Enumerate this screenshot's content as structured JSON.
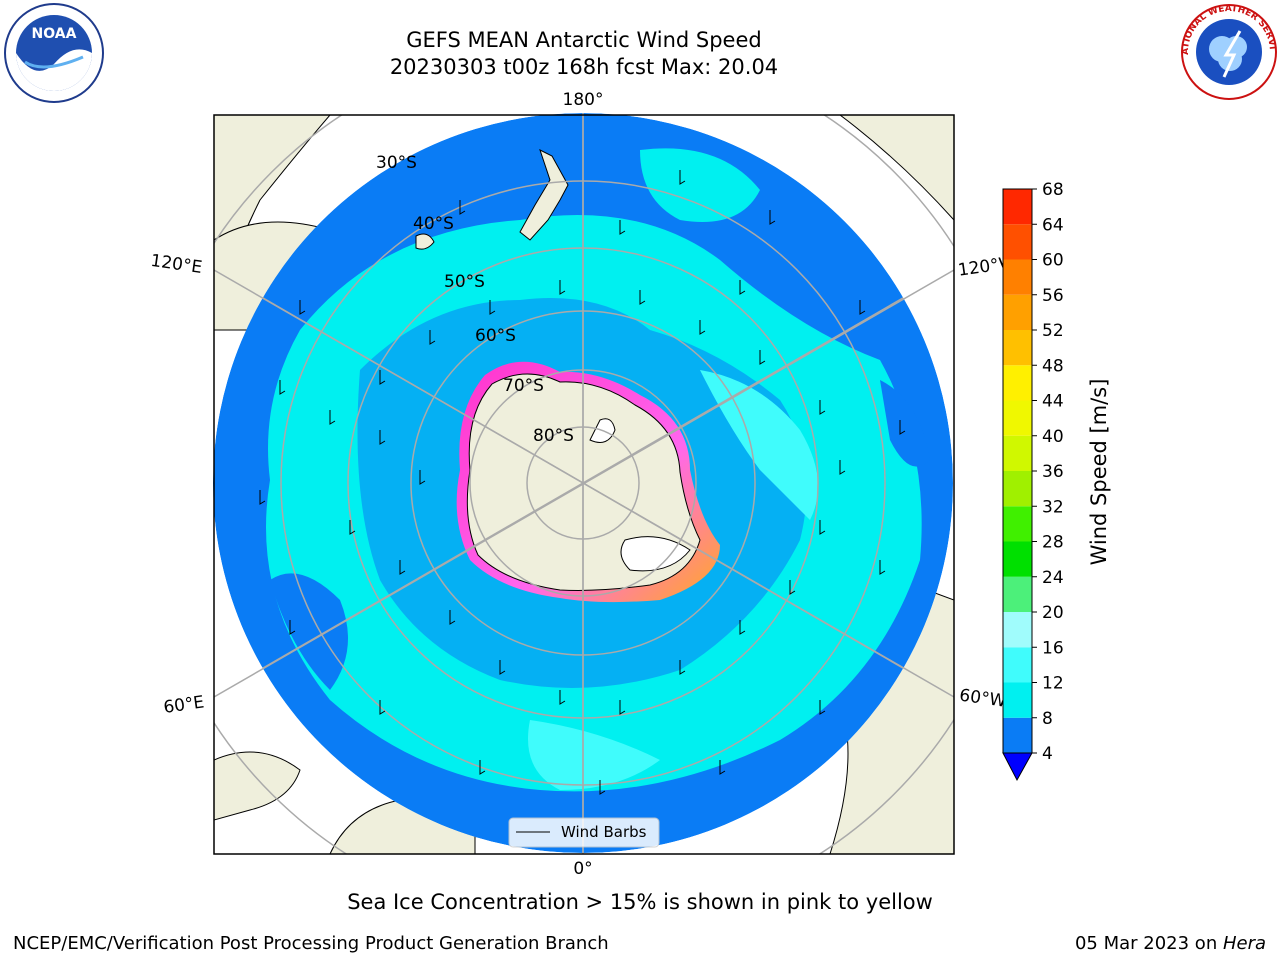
{
  "title": {
    "line1": "GEFS MEAN Antarctic Wind Speed",
    "line2": "20230303 t00z 168h fcst   Max: 20.04"
  },
  "map": {
    "projection": "South Polar Stereographic",
    "longitude_labels": {
      "top": "180°",
      "bottom": "0°",
      "upper_left": "120°E",
      "upper_right": "120°W",
      "lower_left": "60°E",
      "lower_right": "60°W"
    },
    "latitude_labels": [
      "30°S",
      "40°S",
      "50°S",
      "60°S",
      "70°S",
      "80°S"
    ],
    "legend_label": "Wind Barbs",
    "colors": {
      "land": "#efefdc",
      "ocean_4_8": "#0a7cf5",
      "ocean_8_12": "#00f0f0",
      "ocean_12_16": "#40fcfc",
      "sea_ice": "#ff33cc",
      "grid": "#aaaaaa"
    }
  },
  "colorbar": {
    "label": "Wind Speed [m/s]",
    "ticks": [
      "4",
      "8",
      "12",
      "16",
      "20",
      "24",
      "28",
      "32",
      "36",
      "40",
      "44",
      "48",
      "52",
      "56",
      "60",
      "64",
      "68"
    ],
    "colors": [
      "#0a7cf5",
      "#00f0f0",
      "#40fcfc",
      "#a0fcfc",
      "#4cf07a",
      "#00e000",
      "#40f000",
      "#a0f000",
      "#d0f800",
      "#f0f800",
      "#fff000",
      "#ffc000",
      "#ffa000",
      "#ff8000",
      "#ff5000",
      "#ff2800",
      "#ff0000"
    ],
    "extend_color": "#0000ff"
  },
  "subtitle": "Sea Ice Concentration > 15% is shown in pink to yellow",
  "footer": {
    "left": "NCEP/EMC/Verification Post Processing Product Generation Branch",
    "right_date": "05 Mar 2023 on ",
    "right_machine": "Hera"
  },
  "logos": {
    "left": "NOAA",
    "right": "NATIONAL WEATHER SERVICE"
  }
}
